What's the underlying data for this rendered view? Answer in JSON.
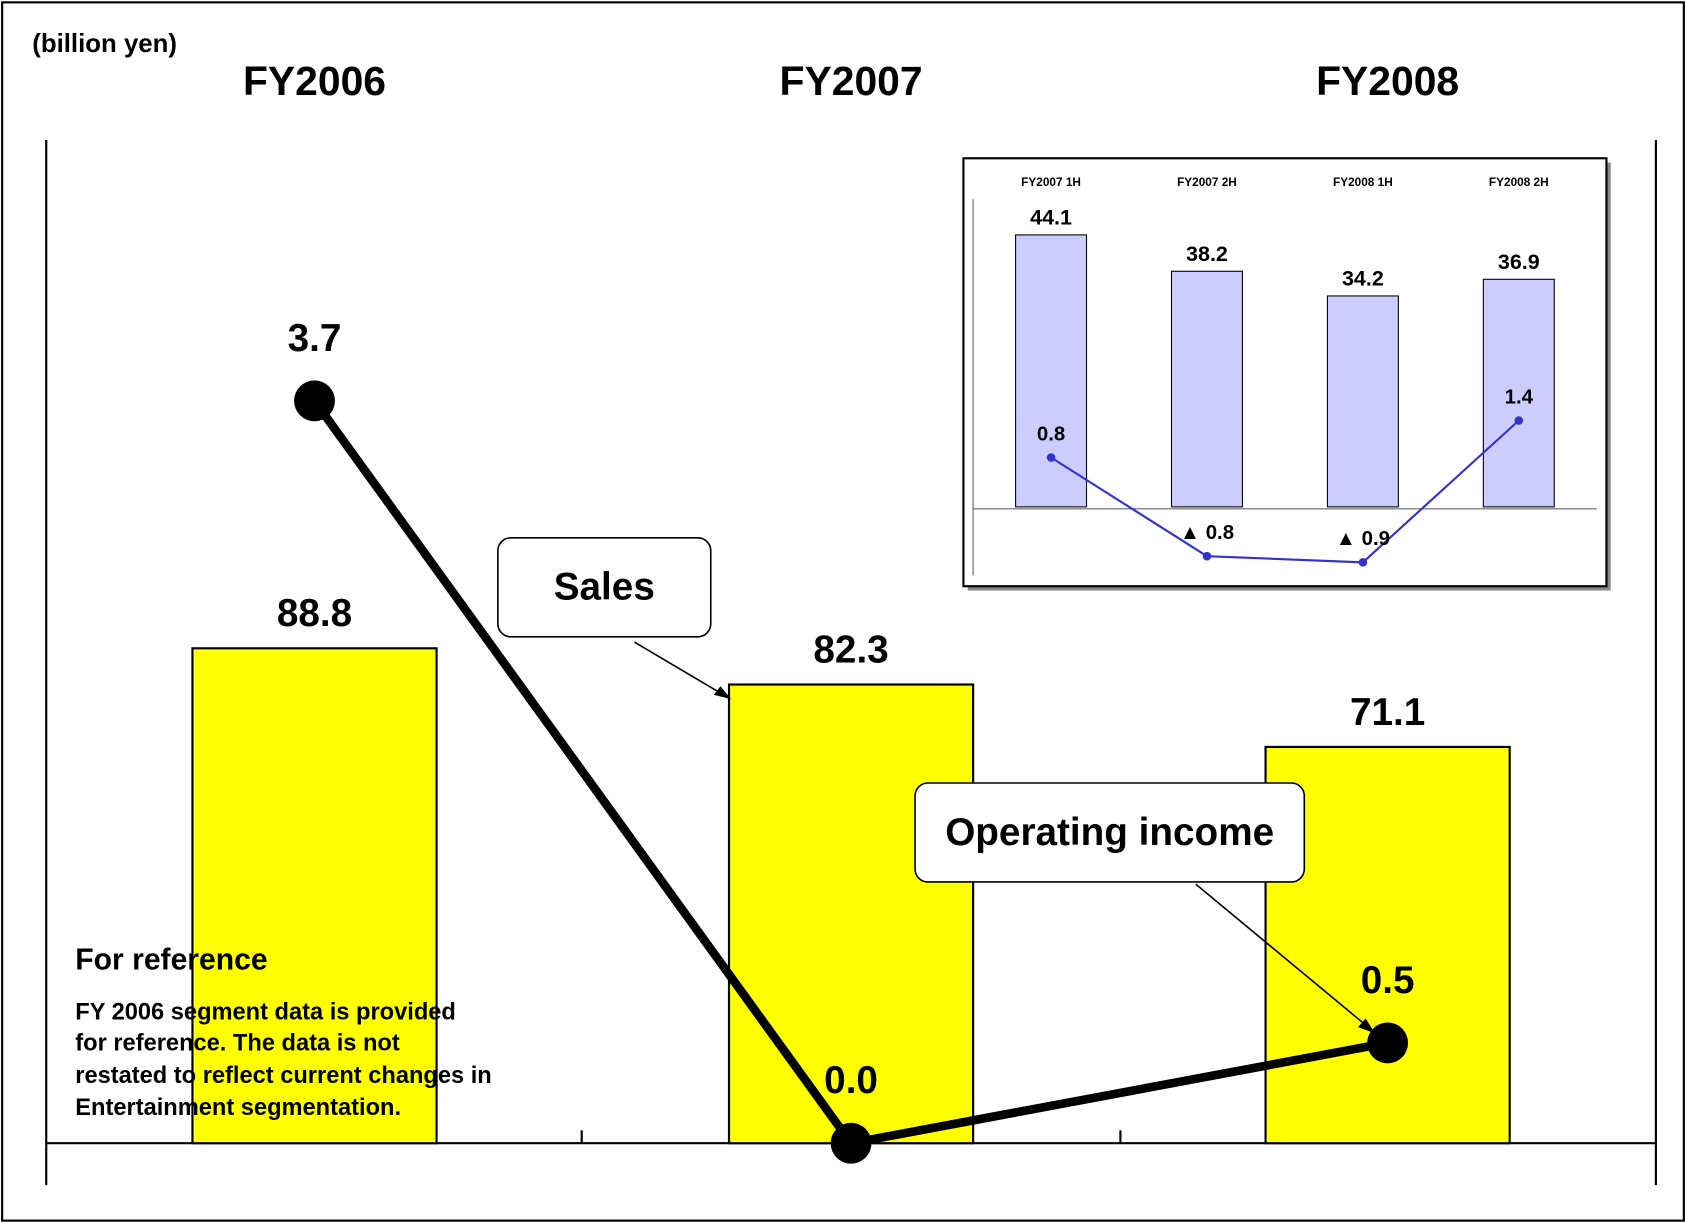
{
  "chart_data": [
    {
      "type": "combo",
      "unit_label": "(billion yen)",
      "categories": [
        "FY2006",
        "FY2007",
        "FY2008"
      ],
      "series": [
        {
          "name": "Sales",
          "type": "bar",
          "color": "#ffff00",
          "values": [
            88.8,
            82.3,
            71.1
          ]
        },
        {
          "name": "Operating income",
          "type": "line",
          "axis": "y2",
          "color": "#000000",
          "values": [
            3.7,
            0.0,
            0.5
          ],
          "value_labels": [
            "3.7",
            "0.0",
            "0.5"
          ]
        }
      ],
      "ylim": [
        0,
        180
      ],
      "y2lim": [
        0,
        5
      ],
      "annotations": {
        "title": "For reference",
        "lines": [
          "FY 2006 segment data is provided",
          "for reference. The data is not",
          "restated to reflect current changes in",
          "Entertainment segmentation."
        ]
      }
    },
    {
      "type": "combo",
      "categories": [
        "FY2007 1H",
        "FY2007 2H",
        "FY2008 1H",
        "FY2008 2H"
      ],
      "series": [
        {
          "type": "bar",
          "color": "#ccccff",
          "values": [
            44.1,
            38.2,
            34.2,
            36.9
          ]
        },
        {
          "type": "line",
          "axis": "y2",
          "color": "#3333cc",
          "values": [
            0.8,
            -0.8,
            -0.9,
            1.4
          ],
          "value_labels": [
            "0.8",
            "▲ 0.8",
            "▲ 0.9",
            "1.4"
          ]
        }
      ],
      "ylim": [
        -12,
        56
      ],
      "y2lim": [
        -1.2,
        5.6
      ]
    }
  ]
}
